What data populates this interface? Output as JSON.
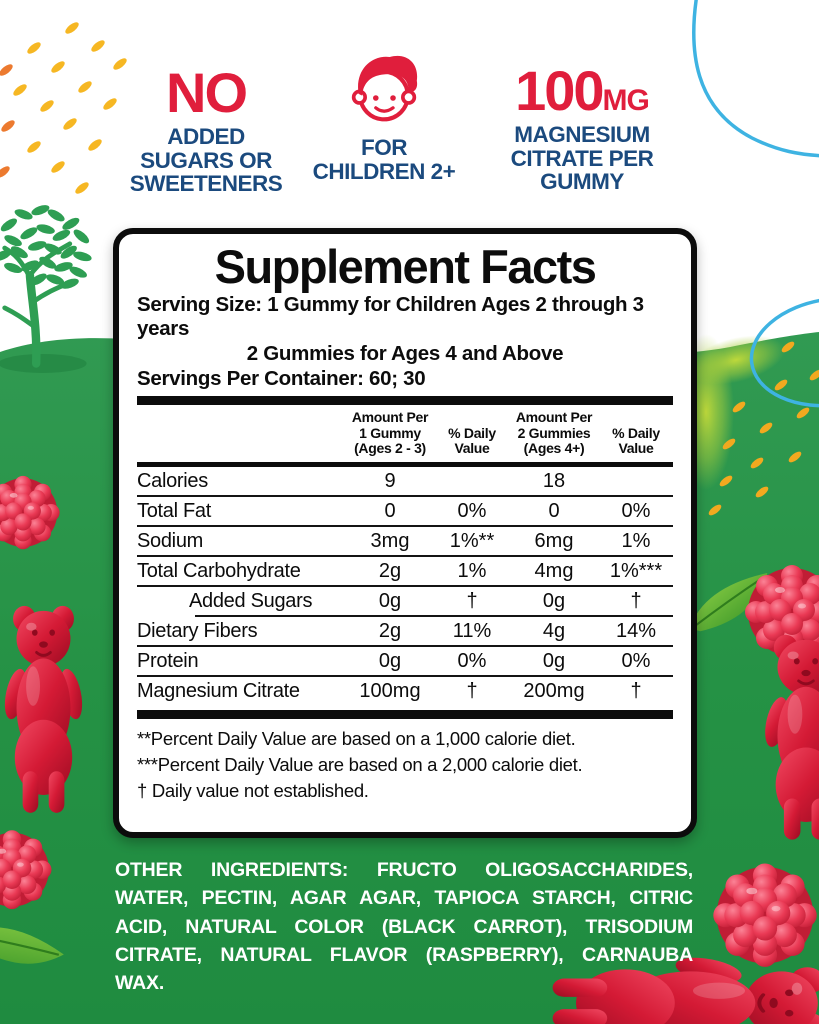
{
  "colors": {
    "badge_red": "#e01e3c",
    "badge_navy": "#1b4a7e",
    "background_green": "#259245",
    "accent_sky_blue": "#3eb3e2",
    "confetti_yellow": "#f6b723",
    "text_black": "#0c0c0c",
    "ingredients_white": "#ffffff"
  },
  "badges": {
    "no_sugar": {
      "headline": "NO",
      "sub_lines": [
        "ADDED",
        "SUGARS OR",
        "SWEETENERS"
      ]
    },
    "children": {
      "icon": "child-face-icon",
      "sub_lines": [
        "FOR",
        "CHILDREN 2+"
      ]
    },
    "magnesium": {
      "headline": "100",
      "unit": "MG",
      "sub_lines": [
        "MAGNESIUM",
        "CITRATE PER",
        "GUMMY"
      ]
    }
  },
  "panel": {
    "title": "Supplement Facts",
    "serving_size_line1": "Serving Size: 1 Gummy for Children Ages 2 through 3 years",
    "serving_size_line2": "2 Gummies for Ages 4 and Above",
    "servings_per_container": "Servings Per Container: 60; 30",
    "columns": [
      {
        "lines": [
          ""
        ]
      },
      {
        "lines": [
          "Amount Per",
          "1 Gummy",
          "(Ages 2 - 3)"
        ]
      },
      {
        "lines": [
          "% Daily",
          "Value"
        ]
      },
      {
        "lines": [
          "Amount Per",
          "2 Gummies",
          "(Ages 4+)"
        ]
      },
      {
        "lines": [
          "% Daily",
          "Value"
        ]
      }
    ],
    "rows": [
      {
        "name": "Calories",
        "indent": false,
        "values": [
          "9",
          "",
          "18",
          ""
        ],
        "sep_indent": false
      },
      {
        "name": "Total Fat",
        "indent": false,
        "values": [
          "0",
          "0%",
          "0",
          "0%"
        ],
        "sep_indent": false
      },
      {
        "name": "Sodium",
        "indent": false,
        "values": [
          "3mg",
          "1%**",
          "6mg",
          "1%"
        ],
        "sep_indent": false
      },
      {
        "name": "Total Carbohydrate",
        "indent": false,
        "values": [
          "2g",
          "1%",
          "4mg",
          "1%***"
        ],
        "sep_indent": false
      },
      {
        "name": "Added Sugars",
        "indent": true,
        "values": [
          "0g",
          "†",
          "0g",
          "†"
        ],
        "sep_indent": true
      },
      {
        "name": "Dietary Fibers",
        "indent": false,
        "values": [
          "2g",
          "11%",
          "4g",
          "14%"
        ],
        "sep_indent": false
      },
      {
        "name": "Protein",
        "indent": false,
        "values": [
          "0g",
          "0%",
          "0g",
          "0%"
        ],
        "sep_indent": false
      },
      {
        "name": "Magnesium Citrate",
        "indent": false,
        "values": [
          "100mg",
          "†",
          "200mg",
          "†"
        ],
        "sep_indent": false
      }
    ],
    "footnotes": [
      "**Percent Daily Value are based on a 1,000 calorie diet.",
      "***Percent Daily Value  are based on a 2,000 calorie diet.",
      "† Daily value not established."
    ]
  },
  "other_ingredients": {
    "label": "OTHER INGREDIENTS:",
    "text": " FRUCTO OLIGOSACCHARIDES, WATER, PECTIN, AGAR AGAR, TAPIOCA STARCH, CITRIC ACID, NATURAL COLOR (BLACK CARROT), TRISODIUM CITRATE, NATURAL FLAVOR (RASPBERRY), CARNAUBA WAX."
  }
}
